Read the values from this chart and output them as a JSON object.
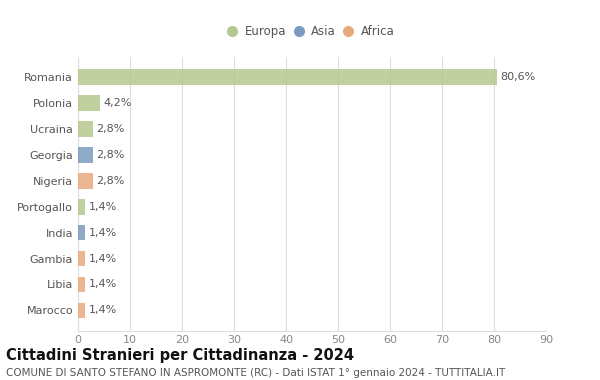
{
  "categories": [
    "Romania",
    "Polonia",
    "Ucraina",
    "Georgia",
    "Nigeria",
    "Portogallo",
    "India",
    "Gambia",
    "Libia",
    "Marocco"
  ],
  "values": [
    80.6,
    4.2,
    2.8,
    2.8,
    2.8,
    1.4,
    1.4,
    1.4,
    1.4,
    1.4
  ],
  "labels": [
    "80,6%",
    "4,2%",
    "2,8%",
    "2,8%",
    "2,8%",
    "1,4%",
    "1,4%",
    "1,4%",
    "1,4%",
    "1,4%"
  ],
  "colors": [
    "#b5c98e",
    "#b5c98e",
    "#b5c98e",
    "#7b9bbf",
    "#e8a97e",
    "#b5c98e",
    "#7b9bbf",
    "#e8a97e",
    "#e8a97e",
    "#e8a97e"
  ],
  "legend_labels": [
    "Europa",
    "Asia",
    "Africa"
  ],
  "legend_colors": [
    "#b5c98e",
    "#7b9bbf",
    "#e8a97e"
  ],
  "title": "Cittadini Stranieri per Cittadinanza - 2024",
  "subtitle": "COMUNE DI SANTO STEFANO IN ASPROMONTE (RC) - Dati ISTAT 1° gennaio 2024 - TUTTITALIA.IT",
  "xlim": [
    0,
    90
  ],
  "xticks": [
    0,
    10,
    20,
    30,
    40,
    50,
    60,
    70,
    80,
    90
  ],
  "background_color": "#ffffff",
  "grid_color": "#dddddd",
  "bar_height": 0.6,
  "title_fontsize": 10.5,
  "subtitle_fontsize": 7.5,
  "tick_fontsize": 8,
  "label_fontsize": 8,
  "legend_fontsize": 8.5
}
